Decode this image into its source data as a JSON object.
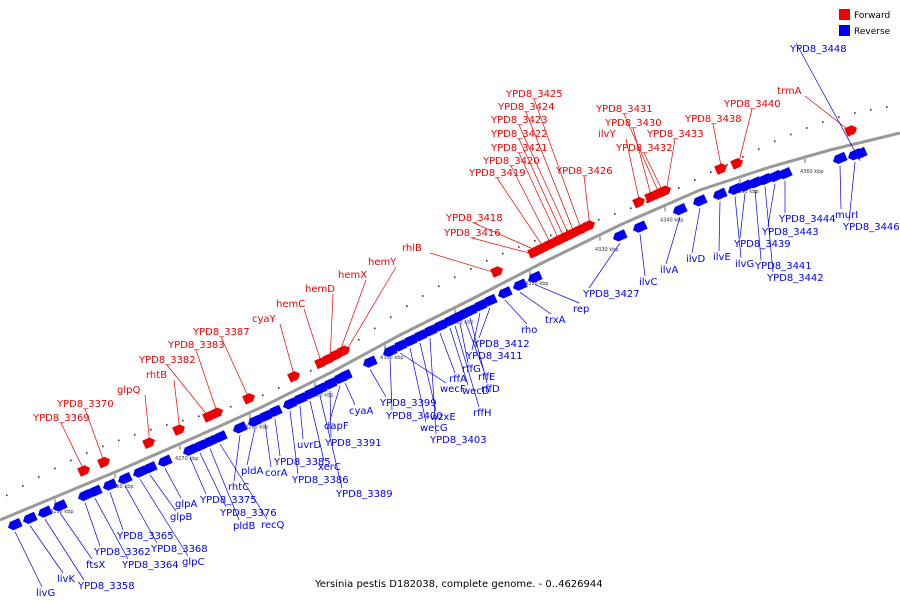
{
  "caption": "Yersinia pestis D182038, complete genome. - 0..4626944",
  "legend": [
    {
      "label": "Forward",
      "color": "#ee0000"
    },
    {
      "label": "Reverse",
      "color": "#0000ee"
    }
  ],
  "colors": {
    "forward": "#ee0000",
    "reverse": "#0000ee",
    "backbone": "#888888",
    "tick": "#000000",
    "leader_forward": "#ee0000",
    "leader_reverse": "#0000ee"
  },
  "tick_labels": [
    "4250 kbp",
    "4260 kbp",
    "4270 kbp",
    "4280 kbp",
    "4290 kbp",
    "4300 kbp",
    "4310 kbp",
    "4320 kbp",
    "4330 kbp",
    "4340 kbp",
    "4350 kbp",
    "4360 kbp"
  ],
  "forward_genes": [
    "YPD8_3369",
    "YPD8_3370",
    "glpQ",
    "rhtB",
    "YPD8_3382",
    "YPD8_3383",
    "YPD8_3387",
    "cyaY",
    "hemC",
    "hemD",
    "hemX",
    "hemY",
    "rhlB",
    "YPD8_3416",
    "YPD8_3418",
    "YPD8_3419",
    "YPD8_3420",
    "YPD8_3421",
    "YPD8_3422",
    "YPD8_3423",
    "YPD8_3424",
    "YPD8_3425",
    "YPD8_3426",
    "ilvY",
    "YPD8_3430",
    "YPD8_3431",
    "YPD8_3432",
    "YPD8_3433",
    "YPD8_3438",
    "YPD8_3440",
    "trmA"
  ],
  "reverse_genes": [
    "livG",
    "livK",
    "YPD8_3358",
    "ftsX",
    "YPD8_3362",
    "YPD8_3364",
    "YPD8_3365",
    "YPD8_3368",
    "glpC",
    "glpB",
    "glpA",
    "YPD8_3375",
    "YPD8_3376",
    "pldB",
    "recQ",
    "rhtC",
    "pldA",
    "corA",
    "YPD8_3385",
    "YPD8_3386",
    "uvrD",
    "xerC",
    "YPD8_3389",
    "YPD8_3391",
    "dapF",
    "cyaA",
    "YPD8_3399",
    "YPD8_3400",
    "wecF",
    "wecG",
    "wzxE",
    "YPD8_3403",
    "rffA",
    "wecD",
    "rffH",
    "rffG",
    "rffE",
    "rffD",
    "YPD8_3411",
    "YPD8_3412",
    "rho",
    "trxA",
    "rep",
    "YPD8_3427",
    "ilvC",
    "ilvA",
    "ilvD",
    "ilvE",
    "ilvG",
    "YPD8_3439",
    "YPD8_3441",
    "YPD8_3442",
    "YPD8_3443",
    "YPD8_3444",
    "murI",
    "YPD8_3446",
    "YPD8_3448"
  ]
}
